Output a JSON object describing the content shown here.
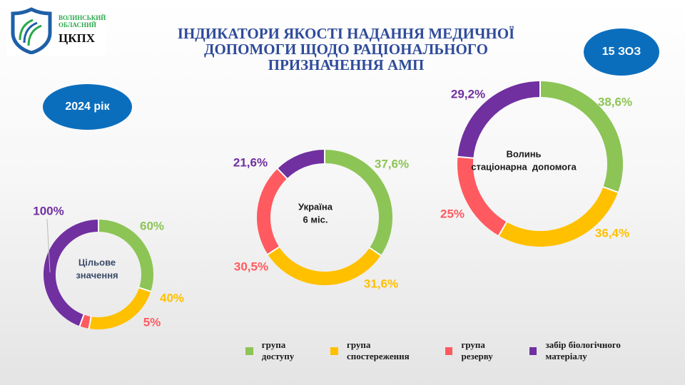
{
  "logo": {
    "line1": "ВОЛИНСЬКИЙ",
    "line2": "ОБЛАСНИЙ",
    "main": "ЦКПХ"
  },
  "title": "ІНДИКАТОРИ ЯКОСТІ НАДАННЯ МЕДИЧНОЇ ДОПОМОГИ ЩОДО РАЦІОНАЛЬНОГО ПРИЗНАЧЕННЯ АМП",
  "badges": {
    "year": "2024 рік",
    "zoz": "15 ЗОЗ"
  },
  "colors": {
    "green": "#8dc456",
    "yellow": "#ffc000",
    "red": "#ff5a5f",
    "purple": "#7030a0"
  },
  "legend": [
    {
      "label": "група доступу",
      "color": "#8dc456"
    },
    {
      "label": "група спостереження",
      "color": "#ffc000"
    },
    {
      "label": "група резерву",
      "color": "#ff5a5f"
    },
    {
      "label": "забір біологічного матеріалу",
      "color": "#7030a0"
    }
  ],
  "chart_data": [
    {
      "type": "pie",
      "center_label": [
        "Цільове",
        "значення"
      ],
      "categories": [
        "група доступу",
        "група спостереження",
        "група резерву",
        "забір біологічного матеріалу"
      ],
      "values": [
        60,
        40,
        5,
        100
      ],
      "labels": [
        "60%",
        "40%",
        "5%",
        "100%"
      ]
    },
    {
      "type": "pie",
      "center_label": [
        "Україна",
        "6 міс."
      ],
      "categories": [
        "група доступу",
        "група спостереження",
        "група резерву",
        "забір біологічного матеріалу"
      ],
      "values": [
        37.6,
        31.6,
        30.5,
        21.6
      ],
      "labels": [
        "37,6%",
        "31,6%",
        "30,5%",
        "21,6%"
      ]
    },
    {
      "type": "pie",
      "center_label": [
        "Волинь",
        "стаціонарна  допомога"
      ],
      "categories": [
        "група доступу",
        "група спостереження",
        "група резерву",
        "забір біологічного матеріалу"
      ],
      "values": [
        38.6,
        36.4,
        25,
        29.2
      ],
      "labels": [
        "38,6%",
        "36,4%",
        "25%",
        "29,2%"
      ]
    }
  ]
}
